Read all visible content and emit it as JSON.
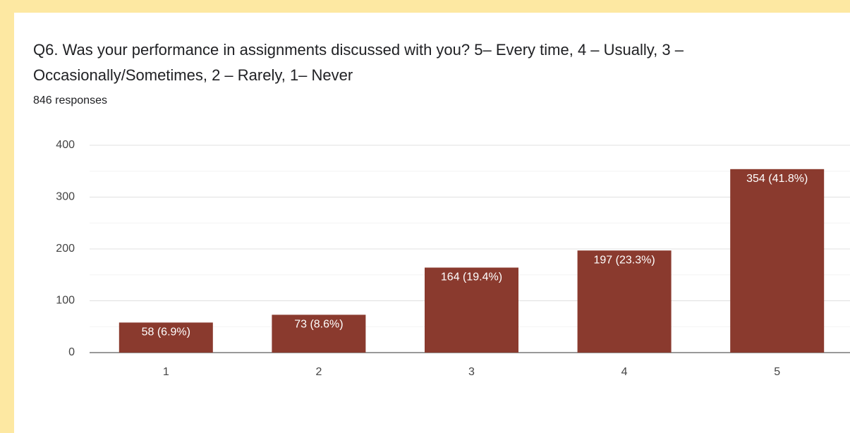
{
  "chart_data": {
    "type": "bar",
    "title_lines": [
      "Q6. Was your performance in assignments discussed with you? 5– Every time, 4 – Usually, 3 –",
      "Occasionally/Sometimes, 2 – Rarely, 1– Never"
    ],
    "subtitle": "846 responses",
    "categories": [
      "1",
      "2",
      "3",
      "4",
      "5"
    ],
    "values": [
      58,
      73,
      164,
      197,
      354
    ],
    "value_labels": [
      "58 (6.9%)",
      "73 (8.6%)",
      "164 (19.4%)",
      "197 (23.3%)",
      "354 (41.8%)"
    ],
    "color": "#8a3a2e",
    "ylim": [
      0,
      400
    ],
    "yticks": [
      0,
      100,
      200,
      300,
      400
    ],
    "minor_yticks": [
      50,
      150,
      250,
      350
    ],
    "grid": true
  }
}
